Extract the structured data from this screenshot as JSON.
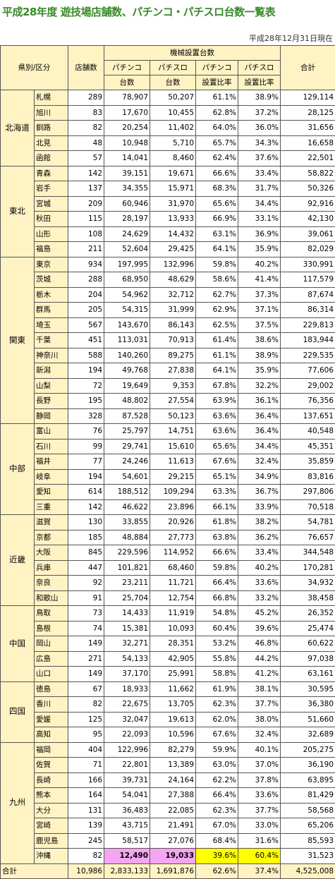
{
  "title": "平成28年度 遊技場店舗数、パチンコ・パチスロ台数一覧表",
  "date": "平成28年12月31日現在",
  "headers": {
    "region": "県別/区分",
    "stores": "店舗数",
    "machines": "機械設置台数",
    "pachinko": "パチンコ",
    "pachislo": "パチスロ",
    "units": "台数",
    "ratio": "設置比率",
    "total": "合計"
  },
  "regions": [
    {
      "name": "北海道",
      "rows": [
        {
          "pref": "札幌",
          "stores": "289",
          "pachinko": "78,907",
          "pachislo": "50,207",
          "pach_ratio": "61.1%",
          "slot_ratio": "38.9%",
          "total": "129,114"
        },
        {
          "pref": "旭川",
          "stores": "83",
          "pachinko": "17,670",
          "pachislo": "10,455",
          "pach_ratio": "62.8%",
          "slot_ratio": "37.2%",
          "total": "28,125"
        },
        {
          "pref": "釧路",
          "stores": "82",
          "pachinko": "20,254",
          "pachislo": "11,402",
          "pach_ratio": "64.0%",
          "slot_ratio": "36.0%",
          "total": "31,656"
        },
        {
          "pref": "北見",
          "stores": "48",
          "pachinko": "10,948",
          "pachislo": "5,710",
          "pach_ratio": "65.7%",
          "slot_ratio": "34.3%",
          "total": "16,658"
        },
        {
          "pref": "函館",
          "stores": "57",
          "pachinko": "14,041",
          "pachislo": "8,460",
          "pach_ratio": "62.4%",
          "slot_ratio": "37.6%",
          "total": "22,501"
        }
      ]
    },
    {
      "name": "東北",
      "rows": [
        {
          "pref": "青森",
          "stores": "142",
          "pachinko": "39,151",
          "pachislo": "19,671",
          "pach_ratio": "66.6%",
          "slot_ratio": "33.4%",
          "total": "58,822"
        },
        {
          "pref": "岩手",
          "stores": "137",
          "pachinko": "34,355",
          "pachislo": "15,971",
          "pach_ratio": "68.3%",
          "slot_ratio": "31.7%",
          "total": "50,326"
        },
        {
          "pref": "宮城",
          "stores": "209",
          "pachinko": "60,946",
          "pachislo": "31,970",
          "pach_ratio": "65.6%",
          "slot_ratio": "34.4%",
          "total": "92,916"
        },
        {
          "pref": "秋田",
          "stores": "115",
          "pachinko": "28,197",
          "pachislo": "13,933",
          "pach_ratio": "66.9%",
          "slot_ratio": "33.1%",
          "total": "42,130"
        },
        {
          "pref": "山形",
          "stores": "108",
          "pachinko": "24,629",
          "pachislo": "14,432",
          "pach_ratio": "63.1%",
          "slot_ratio": "36.9%",
          "total": "39,061"
        },
        {
          "pref": "福島",
          "stores": "211",
          "pachinko": "52,604",
          "pachislo": "29,425",
          "pach_ratio": "64.1%",
          "slot_ratio": "35.9%",
          "total": "82,029"
        }
      ]
    },
    {
      "name": "関東",
      "rows": [
        {
          "pref": "東京",
          "stores": "934",
          "pachinko": "197,995",
          "pachislo": "132,996",
          "pach_ratio": "59.8%",
          "slot_ratio": "40.2%",
          "total": "330,991"
        },
        {
          "pref": "茨城",
          "stores": "288",
          "pachinko": "68,950",
          "pachislo": "48,629",
          "pach_ratio": "58.6%",
          "slot_ratio": "41.4%",
          "total": "117,579"
        },
        {
          "pref": "栃木",
          "stores": "204",
          "pachinko": "54,962",
          "pachislo": "32,712",
          "pach_ratio": "62.7%",
          "slot_ratio": "37.3%",
          "total": "87,674"
        },
        {
          "pref": "群馬",
          "stores": "205",
          "pachinko": "54,315",
          "pachislo": "31,999",
          "pach_ratio": "62.9%",
          "slot_ratio": "37.1%",
          "total": "86,314"
        },
        {
          "pref": "埼玉",
          "stores": "567",
          "pachinko": "143,670",
          "pachislo": "86,143",
          "pach_ratio": "62.5%",
          "slot_ratio": "37.5%",
          "total": "229,813"
        },
        {
          "pref": "千葉",
          "stores": "451",
          "pachinko": "113,031",
          "pachislo": "70,913",
          "pach_ratio": "61.4%",
          "slot_ratio": "38.6%",
          "total": "183,944"
        },
        {
          "pref": "神奈川",
          "stores": "588",
          "pachinko": "140,260",
          "pachislo": "89,275",
          "pach_ratio": "61.1%",
          "slot_ratio": "38.9%",
          "total": "229,535"
        },
        {
          "pref": "新潟",
          "stores": "194",
          "pachinko": "49,768",
          "pachislo": "27,838",
          "pach_ratio": "64.1%",
          "slot_ratio": "35.9%",
          "total": "77,606"
        },
        {
          "pref": "山梨",
          "stores": "72",
          "pachinko": "19,649",
          "pachislo": "9,353",
          "pach_ratio": "67.8%",
          "slot_ratio": "32.2%",
          "total": "29,002"
        },
        {
          "pref": "長野",
          "stores": "195",
          "pachinko": "48,802",
          "pachislo": "27,554",
          "pach_ratio": "63.9%",
          "slot_ratio": "36.1%",
          "total": "76,356"
        },
        {
          "pref": "静岡",
          "stores": "328",
          "pachinko": "87,528",
          "pachislo": "50,123",
          "pach_ratio": "63.6%",
          "slot_ratio": "36.4%",
          "total": "137,651"
        }
      ]
    },
    {
      "name": "中部",
      "rows": [
        {
          "pref": "富山",
          "stores": "76",
          "pachinko": "25,797",
          "pachislo": "14,751",
          "pach_ratio": "63.6%",
          "slot_ratio": "36.4%",
          "total": "40,548"
        },
        {
          "pref": "石川",
          "stores": "99",
          "pachinko": "29,741",
          "pachislo": "15,610",
          "pach_ratio": "65.6%",
          "slot_ratio": "34.4%",
          "total": "45,351"
        },
        {
          "pref": "福井",
          "stores": "77",
          "pachinko": "24,246",
          "pachislo": "11,613",
          "pach_ratio": "67.6%",
          "slot_ratio": "32.4%",
          "total": "35,859"
        },
        {
          "pref": "岐阜",
          "stores": "194",
          "pachinko": "54,601",
          "pachislo": "29,215",
          "pach_ratio": "65.1%",
          "slot_ratio": "34.9%",
          "total": "83,816"
        },
        {
          "pref": "愛知",
          "stores": "614",
          "pachinko": "188,512",
          "pachislo": "109,294",
          "pach_ratio": "63.3%",
          "slot_ratio": "36.7%",
          "total": "297,806"
        },
        {
          "pref": "三重",
          "stores": "142",
          "pachinko": "46,622",
          "pachislo": "23,896",
          "pach_ratio": "66.1%",
          "slot_ratio": "33.9%",
          "total": "70,518"
        }
      ]
    },
    {
      "name": "近畿",
      "rows": [
        {
          "pref": "滋賀",
          "stores": "130",
          "pachinko": "33,855",
          "pachislo": "20,926",
          "pach_ratio": "61.8%",
          "slot_ratio": "38.2%",
          "total": "54,781"
        },
        {
          "pref": "京都",
          "stores": "185",
          "pachinko": "48,884",
          "pachislo": "27,773",
          "pach_ratio": "63.8%",
          "slot_ratio": "36.2%",
          "total": "76,657"
        },
        {
          "pref": "大阪",
          "stores": "845",
          "pachinko": "229,596",
          "pachislo": "114,952",
          "pach_ratio": "66.6%",
          "slot_ratio": "33.4%",
          "total": "344,548"
        },
        {
          "pref": "兵庫",
          "stores": "447",
          "pachinko": "101,821",
          "pachislo": "68,460",
          "pach_ratio": "59.8%",
          "slot_ratio": "40.2%",
          "total": "170,281"
        },
        {
          "pref": "奈良",
          "stores": "92",
          "pachinko": "23,211",
          "pachislo": "11,721",
          "pach_ratio": "66.4%",
          "slot_ratio": "33.6%",
          "total": "34,932"
        },
        {
          "pref": "和歌山",
          "stores": "91",
          "pachinko": "25,704",
          "pachislo": "12,754",
          "pach_ratio": "66.8%",
          "slot_ratio": "33.2%",
          "total": "38,458"
        }
      ]
    },
    {
      "name": "中国",
      "rows": [
        {
          "pref": "鳥取",
          "stores": "73",
          "pachinko": "14,433",
          "pachislo": "11,919",
          "pach_ratio": "54.8%",
          "slot_ratio": "45.2%",
          "total": "26,352"
        },
        {
          "pref": "島根",
          "stores": "74",
          "pachinko": "15,381",
          "pachislo": "10,093",
          "pach_ratio": "60.4%",
          "slot_ratio": "39.6%",
          "total": "25,474"
        },
        {
          "pref": "岡山",
          "stores": "149",
          "pachinko": "32,271",
          "pachislo": "28,351",
          "pach_ratio": "53.2%",
          "slot_ratio": "46.8%",
          "total": "60,622"
        },
        {
          "pref": "広島",
          "stores": "271",
          "pachinko": "54,133",
          "pachislo": "42,905",
          "pach_ratio": "55.8%",
          "slot_ratio": "44.2%",
          "total": "97,038"
        },
        {
          "pref": "山口",
          "stores": "149",
          "pachinko": "37,170",
          "pachislo": "25,991",
          "pach_ratio": "58.8%",
          "slot_ratio": "41.2%",
          "total": "63,161"
        }
      ]
    },
    {
      "name": "四国",
      "rows": [
        {
          "pref": "徳島",
          "stores": "67",
          "pachinko": "18,933",
          "pachislo": "11,662",
          "pach_ratio": "61.9%",
          "slot_ratio": "38.1%",
          "total": "30,595"
        },
        {
          "pref": "香川",
          "stores": "82",
          "pachinko": "22,675",
          "pachislo": "13,705",
          "pach_ratio": "62.3%",
          "slot_ratio": "37.7%",
          "total": "36,380"
        },
        {
          "pref": "愛媛",
          "stores": "125",
          "pachinko": "32,047",
          "pachislo": "19,613",
          "pach_ratio": "62.0%",
          "slot_ratio": "38.0%",
          "total": "51,660"
        },
        {
          "pref": "高知",
          "stores": "95",
          "pachinko": "22,093",
          "pachislo": "10,596",
          "pach_ratio": "67.6%",
          "slot_ratio": "32.4%",
          "total": "32,689"
        }
      ]
    },
    {
      "name": "九州",
      "rows": [
        {
          "pref": "福岡",
          "stores": "404",
          "pachinko": "122,996",
          "pachislo": "82,279",
          "pach_ratio": "59.9%",
          "slot_ratio": "40.1%",
          "total": "205,275"
        },
        {
          "pref": "佐賀",
          "stores": "71",
          "pachinko": "22,801",
          "pachislo": "13,389",
          "pach_ratio": "63.0%",
          "slot_ratio": "37.0%",
          "total": "36,190"
        },
        {
          "pref": "長崎",
          "stores": "166",
          "pachinko": "39,731",
          "pachislo": "24,164",
          "pach_ratio": "62.2%",
          "slot_ratio": "37.8%",
          "total": "63,895"
        },
        {
          "pref": "熊本",
          "stores": "164",
          "pachinko": "54,041",
          "pachislo": "27,388",
          "pach_ratio": "66.4%",
          "slot_ratio": "33.6%",
          "total": "81,429"
        },
        {
          "pref": "大分",
          "stores": "131",
          "pachinko": "36,483",
          "pachislo": "22,085",
          "pach_ratio": "62.3%",
          "slot_ratio": "37.7%",
          "total": "58,568"
        },
        {
          "pref": "宮崎",
          "stores": "139",
          "pachinko": "43,715",
          "pachislo": "21,491",
          "pach_ratio": "67.0%",
          "slot_ratio": "33.0%",
          "total": "65,206"
        },
        {
          "pref": "鹿児島",
          "stores": "245",
          "pachinko": "58,517",
          "pachislo": "27,076",
          "pach_ratio": "68.4%",
          "slot_ratio": "31.6%",
          "total": "85,593"
        },
        {
          "pref": "沖縄",
          "stores": "82",
          "pachinko": "12,490",
          "pachislo": "19,033",
          "pach_ratio": "39.6%",
          "slot_ratio": "60.4%",
          "total": "31,523",
          "highlight": true
        }
      ]
    }
  ],
  "grand_total": {
    "label": "合計",
    "stores": "10,986",
    "pachinko": "2,833,133",
    "pachislo": "1,691,876",
    "pach_ratio": "62.6%",
    "slot_ratio": "37.4%",
    "total": "4,525,008"
  }
}
